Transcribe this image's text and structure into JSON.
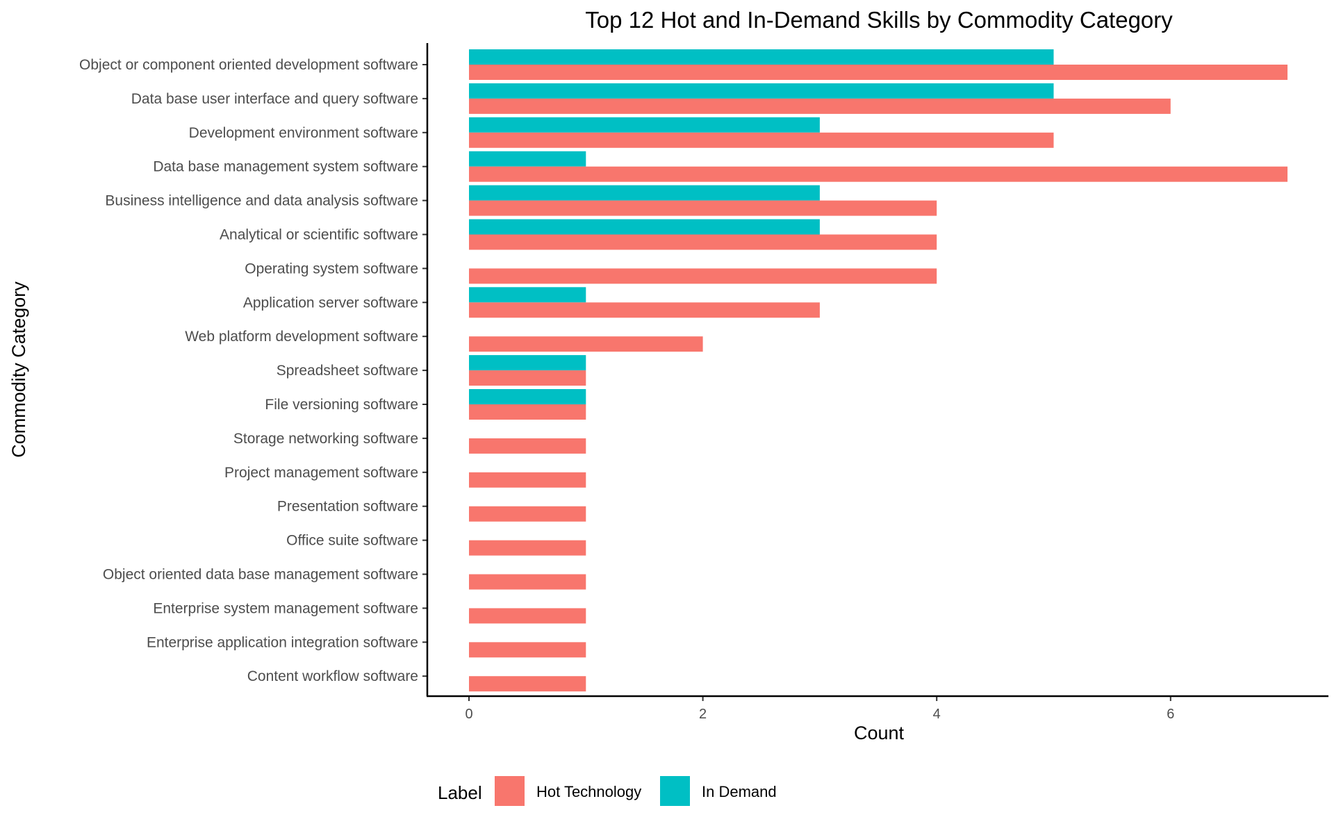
{
  "chart_data": {
    "type": "bar",
    "orientation": "horizontal",
    "title": "Top 12 Hot and In-Demand Skills by Commodity Category",
    "xlabel": "Count",
    "ylabel": "Commodity Category",
    "xlim": [
      0,
      7
    ],
    "xticks": [
      "0",
      "2",
      "4",
      "6"
    ],
    "grid": false,
    "legend_position": "bottom",
    "legend_title": "Label",
    "categories": [
      "Object or component oriented development software",
      "Data base user interface and query software",
      "Development environment software",
      "Data base management system software",
      "Business intelligence and data analysis software",
      "Analytical or scientific software",
      "Operating system software",
      "Application server software",
      "Web platform development software",
      "Spreadsheet software",
      "File versioning software",
      "Storage networking software",
      "Project management software",
      "Presentation software",
      "Office suite software",
      "Object oriented data base management software",
      "Enterprise system management software",
      "Enterprise application integration software",
      "Content workflow software"
    ],
    "series": [
      {
        "name": "Hot Technology",
        "color": "#F8766D",
        "values": [
          7,
          6,
          5,
          7,
          4,
          4,
          4,
          3,
          2,
          1,
          1,
          1,
          1,
          1,
          1,
          1,
          1,
          1,
          1
        ]
      },
      {
        "name": "In Demand",
        "color": "#00BFC4",
        "values": [
          5,
          5,
          3,
          1,
          3,
          3,
          0,
          1,
          0,
          1,
          1,
          0,
          0,
          0,
          0,
          0,
          0,
          0,
          0
        ]
      }
    ]
  }
}
